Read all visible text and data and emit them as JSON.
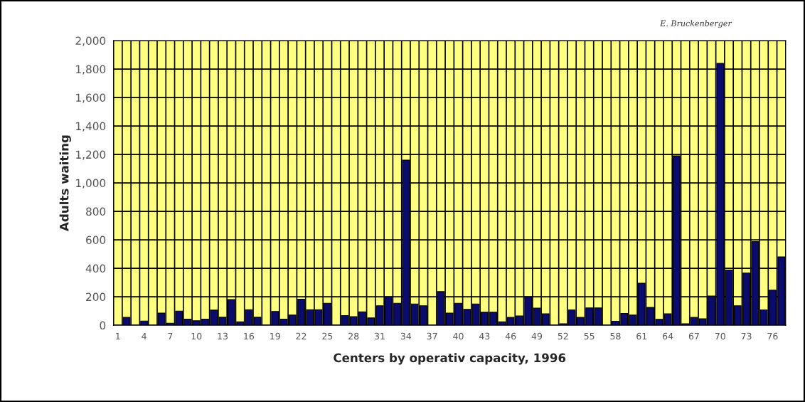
{
  "chart_data": {
    "type": "bar",
    "xlabel": "Centers by operativ capacity, 1996",
    "ylabel": "Adults waiting",
    "annotations": [
      "E. Bruckenberger"
    ],
    "categories": [
      "1",
      null,
      null,
      "4",
      null,
      null,
      "7",
      null,
      null,
      "10",
      null,
      null,
      "13",
      null,
      null,
      "16",
      null,
      null,
      "19",
      null,
      null,
      "22",
      null,
      null,
      "25",
      null,
      null,
      "28",
      null,
      null,
      "31",
      null,
      null,
      "34",
      null,
      null,
      "37",
      null,
      null,
      "40",
      null,
      null,
      "43",
      null,
      null,
      "46",
      null,
      null,
      "49",
      null,
      null,
      "52",
      null,
      null,
      "55",
      null,
      null,
      "58",
      null,
      null,
      "61",
      null,
      null,
      "64",
      null,
      null,
      "67",
      null,
      null,
      "70",
      null,
      null,
      "73",
      null,
      null,
      "76",
      null
    ],
    "values": [
      0,
      55,
      0,
      29,
      0,
      85,
      14,
      99,
      43,
      31,
      43,
      106,
      56,
      180,
      24,
      109,
      56,
      0,
      97,
      43,
      72,
      183,
      109,
      109,
      154,
      0,
      68,
      60,
      94,
      51,
      137,
      200,
      154,
      1160,
      149,
      137,
      0,
      236,
      85,
      154,
      111,
      149,
      91,
      91,
      24,
      55,
      65,
      200,
      120,
      80,
      0,
      10,
      108,
      55,
      122,
      122,
      0,
      28,
      83,
      72,
      295,
      125,
      42,
      80,
      1190,
      10,
      55,
      45,
      205,
      1840,
      388,
      137,
      367,
      587,
      108,
      247,
      480
    ],
    "color": "#0b0b6e",
    "ylim": [
      0,
      2000
    ],
    "yticks": [
      {
        "value": 0,
        "label": "0"
      },
      {
        "value": 200,
        "label": "200"
      },
      {
        "value": 400,
        "label": "400"
      },
      {
        "value": 600,
        "label": "600"
      },
      {
        "value": 800,
        "label": "800"
      },
      {
        "value": 1000,
        "label": "1,000"
      },
      {
        "value": 1200,
        "label": "1,200"
      },
      {
        "value": 1400,
        "label": "1,400"
      },
      {
        "value": 1600,
        "label": "1,600"
      },
      {
        "value": 1800,
        "label": "1,800"
      },
      {
        "value": 2000,
        "label": "2,000"
      }
    ],
    "grid": true
  }
}
